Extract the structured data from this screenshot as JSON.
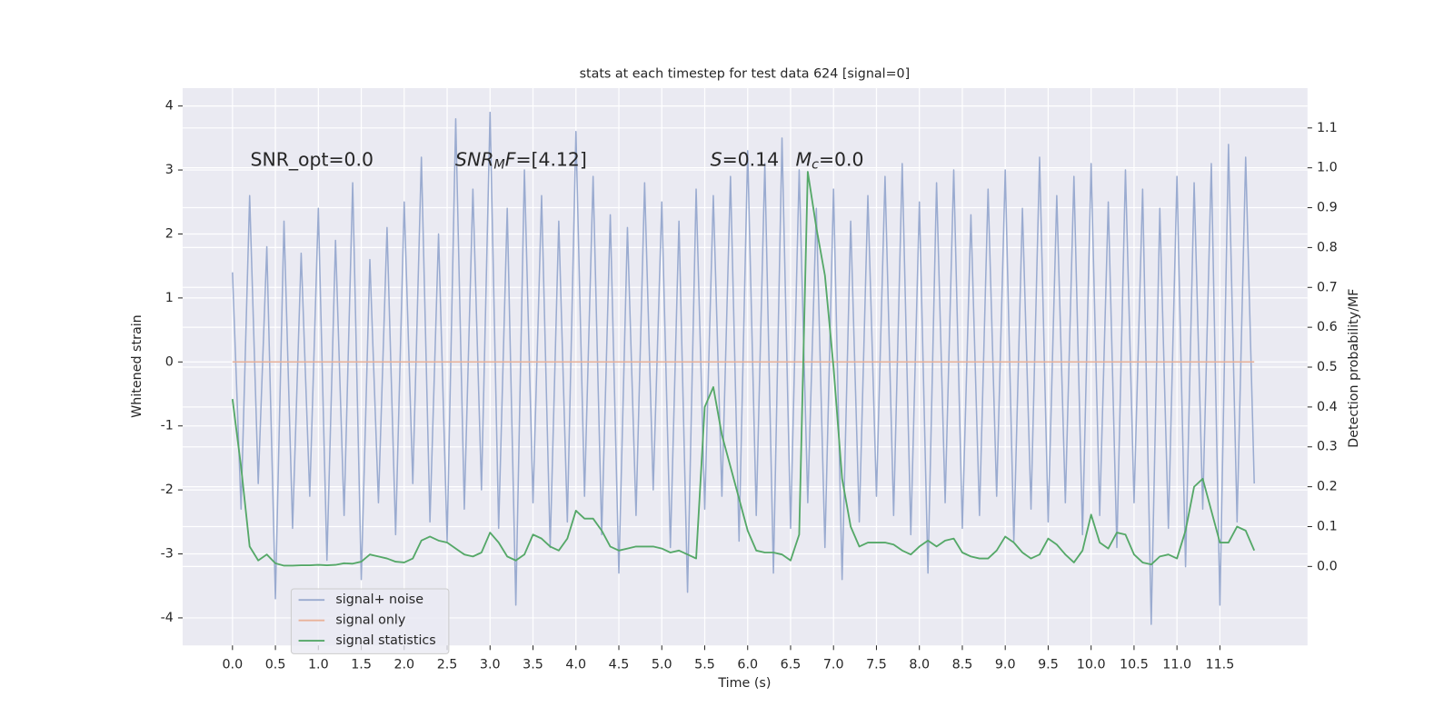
{
  "chart_data": {
    "type": "line",
    "title": "stats at each timestep for test data 624 [signal=0]",
    "xlabel": "Time (s)",
    "ylabel": "Whitened strain",
    "y2label": "Detection probability/MF",
    "xlim": [
      -0.58,
      12.52
    ],
    "ylim": [
      -4.43,
      4.28
    ],
    "y2lim": [
      -0.198,
      1.2
    ],
    "xticks": [
      {
        "value": 0,
        "label": "0.0"
      },
      0.5,
      {
        "value": 1,
        "label": "1.0"
      },
      1.5,
      {
        "value": 2,
        "label": "2.0"
      },
      2.5,
      {
        "value": 3,
        "label": "3.0"
      },
      3.5,
      {
        "value": 4,
        "label": "4.0"
      },
      4.5,
      {
        "value": 5,
        "label": "5.0"
      },
      5.5,
      {
        "value": 6,
        "label": "6.0"
      },
      6.5,
      {
        "value": 7,
        "label": "7.0"
      },
      7.5,
      {
        "value": 8,
        "label": "8.0"
      },
      8.5,
      {
        "value": 9,
        "label": "9.0"
      },
      9.5,
      {
        "value": 10,
        "label": "10.0"
      },
      10.5,
      {
        "value": 11,
        "label": "11.0"
      },
      11.5
    ],
    "yticks": [
      -4,
      -3,
      -2,
      -1,
      0,
      1,
      2,
      3,
      4
    ],
    "y2ticks": [
      {
        "value": 0,
        "label": "0.0"
      },
      0.1,
      0.2,
      0.3,
      0.4,
      0.5,
      0.6,
      0.7,
      0.8,
      0.9,
      {
        "value": 1,
        "label": "1.0"
      },
      1.1
    ],
    "grid": true,
    "legend": "lower left",
    "annotations": [
      [
        {
          "text": "SNR_opt=0.0"
        }
      ],
      [
        {
          "text": "SNR",
          "italic": true
        },
        {
          "text": "M",
          "italic": true,
          "sub": true
        },
        {
          "text": "F",
          "italic": true
        },
        {
          "text": "=[4.12]"
        }
      ],
      [
        {
          "text": "S",
          "italic": true
        },
        {
          "text": "=0.14"
        }
      ],
      [
        {
          "text": "M",
          "italic": true
        },
        {
          "text": "c",
          "italic": true,
          "sub": true
        },
        {
          "text": "=0.0"
        }
      ]
    ],
    "x": [
      0,
      0.1,
      0.2,
      0.3,
      0.4,
      0.5,
      0.6,
      0.7,
      0.8,
      0.9,
      1,
      1.1,
      1.2,
      1.3,
      1.4,
      1.5,
      1.6,
      1.7,
      1.8,
      1.9,
      2,
      2.1,
      2.2,
      2.3,
      2.4,
      2.5,
      2.6,
      2.7,
      2.8,
      2.9,
      3,
      3.1,
      3.2,
      3.3,
      3.4,
      3.5,
      3.6,
      3.7,
      3.8,
      3.9,
      4,
      4.1,
      4.2,
      4.3,
      4.4,
      4.5,
      4.6,
      4.7,
      4.8,
      4.9,
      5,
      5.1,
      5.2,
      5.3,
      5.4,
      5.5,
      5.6,
      5.7,
      5.8,
      5.9,
      6,
      6.1,
      6.2,
      6.3,
      6.4,
      6.5,
      6.6,
      6.7,
      6.8,
      6.9,
      7,
      7.1,
      7.2,
      7.3,
      7.4,
      7.5,
      7.6,
      7.7,
      7.8,
      7.9,
      8,
      8.1,
      8.2,
      8.3,
      8.4,
      8.5,
      8.6,
      8.7,
      8.8,
      8.9,
      9,
      9.1,
      9.2,
      9.3,
      9.4,
      9.5,
      9.6,
      9.7,
      9.8,
      9.9,
      10,
      10.1,
      10.2,
      10.3,
      10.4,
      10.5,
      10.6,
      10.7,
      10.8,
      10.9,
      11,
      11.1,
      11.2,
      11.3,
      11.4,
      11.5,
      11.6,
      11.7,
      11.8,
      11.9
    ],
    "series": [
      {
        "name": "signal+ noise",
        "color": "#9aabd0",
        "axis": "y",
        "values": [
          1.4,
          -2.3,
          2.6,
          -1.9,
          1.8,
          -3.7,
          2.2,
          -2.6,
          1.7,
          -2.1,
          2.4,
          -3.1,
          1.9,
          -2.4,
          2.8,
          -3.4,
          1.6,
          -2.2,
          2.1,
          -2.7,
          2.5,
          -1.9,
          3.2,
          -2.5,
          2.0,
          -2.8,
          3.8,
          -2.3,
          2.7,
          -2.0,
          3.9,
          -2.6,
          2.4,
          -3.8,
          3.0,
          -2.2,
          2.6,
          -2.9,
          2.2,
          -2.5,
          3.6,
          -2.1,
          2.9,
          -2.7,
          2.3,
          -3.3,
          2.1,
          -2.4,
          2.8,
          -2.0,
          2.5,
          -2.9,
          2.2,
          -3.6,
          2.7,
          -2.3,
          2.6,
          -2.1,
          2.9,
          -2.8,
          3.3,
          -2.4,
          3.1,
          -3.3,
          3.5,
          -2.6,
          3.0,
          -2.2,
          2.4,
          -2.9,
          2.7,
          -3.4,
          2.2,
          -2.5,
          2.6,
          -2.1,
          2.9,
          -2.4,
          3.1,
          -2.7,
          2.5,
          -3.3,
          2.8,
          -2.2,
          3.0,
          -2.6,
          2.3,
          -2.4,
          2.7,
          -2.1,
          3.0,
          -2.8,
          2.4,
          -2.3,
          3.2,
          -2.5,
          2.6,
          -2.2,
          2.9,
          -2.7,
          3.1,
          -2.4,
          2.5,
          -2.9,
          3.0,
          -2.2,
          2.7,
          -4.1,
          2.4,
          -2.6,
          2.9,
          -3.2,
          2.8,
          -2.3,
          3.1,
          -3.8,
          3.4,
          -2.5,
          3.2,
          -1.9
        ]
      },
      {
        "name": "signal only",
        "color": "#e9b29a",
        "axis": "y",
        "x": [
          0,
          11.9
        ],
        "values": [
          0,
          0
        ]
      },
      {
        "name": "signal statistics",
        "color": "#55a868",
        "axis": "y2",
        "values": [
          0.42,
          0.25,
          0.05,
          0.015,
          0.03,
          0.008,
          0.002,
          0.002,
          0.003,
          0.003,
          0.004,
          0.003,
          0.004,
          0.008,
          0.007,
          0.012,
          0.03,
          0.025,
          0.02,
          0.012,
          0.01,
          0.02,
          0.065,
          0.075,
          0.065,
          0.06,
          0.045,
          0.03,
          0.025,
          0.035,
          0.085,
          0.06,
          0.025,
          0.015,
          0.03,
          0.08,
          0.07,
          0.05,
          0.04,
          0.07,
          0.14,
          0.12,
          0.12,
          0.09,
          0.05,
          0.04,
          0.045,
          0.05,
          0.05,
          0.05,
          0.045,
          0.035,
          0.04,
          0.03,
          0.02,
          0.4,
          0.45,
          0.33,
          0.25,
          0.17,
          0.09,
          0.04,
          0.035,
          0.035,
          0.03,
          0.015,
          0.08,
          0.99,
          0.85,
          0.73,
          0.5,
          0.22,
          0.1,
          0.05,
          0.06,
          0.06,
          0.06,
          0.055,
          0.04,
          0.03,
          0.05,
          0.065,
          0.05,
          0.065,
          0.07,
          0.035,
          0.025,
          0.02,
          0.02,
          0.04,
          0.075,
          0.06,
          0.035,
          0.02,
          0.03,
          0.07,
          0.055,
          0.03,
          0.01,
          0.04,
          0.13,
          0.06,
          0.045,
          0.085,
          0.08,
          0.03,
          0.01,
          0.005,
          0.025,
          0.03,
          0.02,
          0.09,
          0.2,
          0.22,
          0.14,
          0.06,
          0.06,
          0.1,
          0.09,
          0.04
        ]
      }
    ]
  }
}
